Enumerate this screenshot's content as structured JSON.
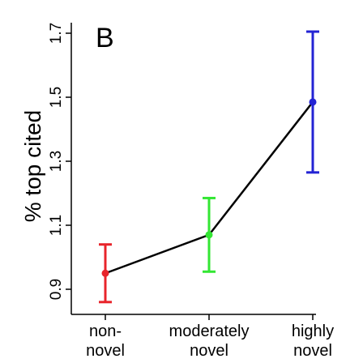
{
  "chart_data": {
    "type": "line",
    "panel_label": "B",
    "ylabel": "% top cited",
    "categories": [
      [
        "non-",
        "novel"
      ],
      [
        "moderately",
        "novel"
      ],
      [
        "highly",
        "novel"
      ]
    ],
    "values": [
      0.95,
      1.07,
      1.485
    ],
    "error_low": [
      0.86,
      0.955,
      1.265
    ],
    "error_high": [
      1.04,
      1.185,
      1.705
    ],
    "point_colors": [
      "#e8242b",
      "#33e633",
      "#2323d4"
    ],
    "line_color": "#000000",
    "yticks": [
      0.9,
      1.1,
      1.3,
      1.5,
      1.7
    ],
    "ytick_labels": [
      "0.9",
      "1.1",
      "1.3",
      "1.5",
      "1.7"
    ],
    "ylim": [
      0.87,
      1.72
    ],
    "grid": false
  }
}
